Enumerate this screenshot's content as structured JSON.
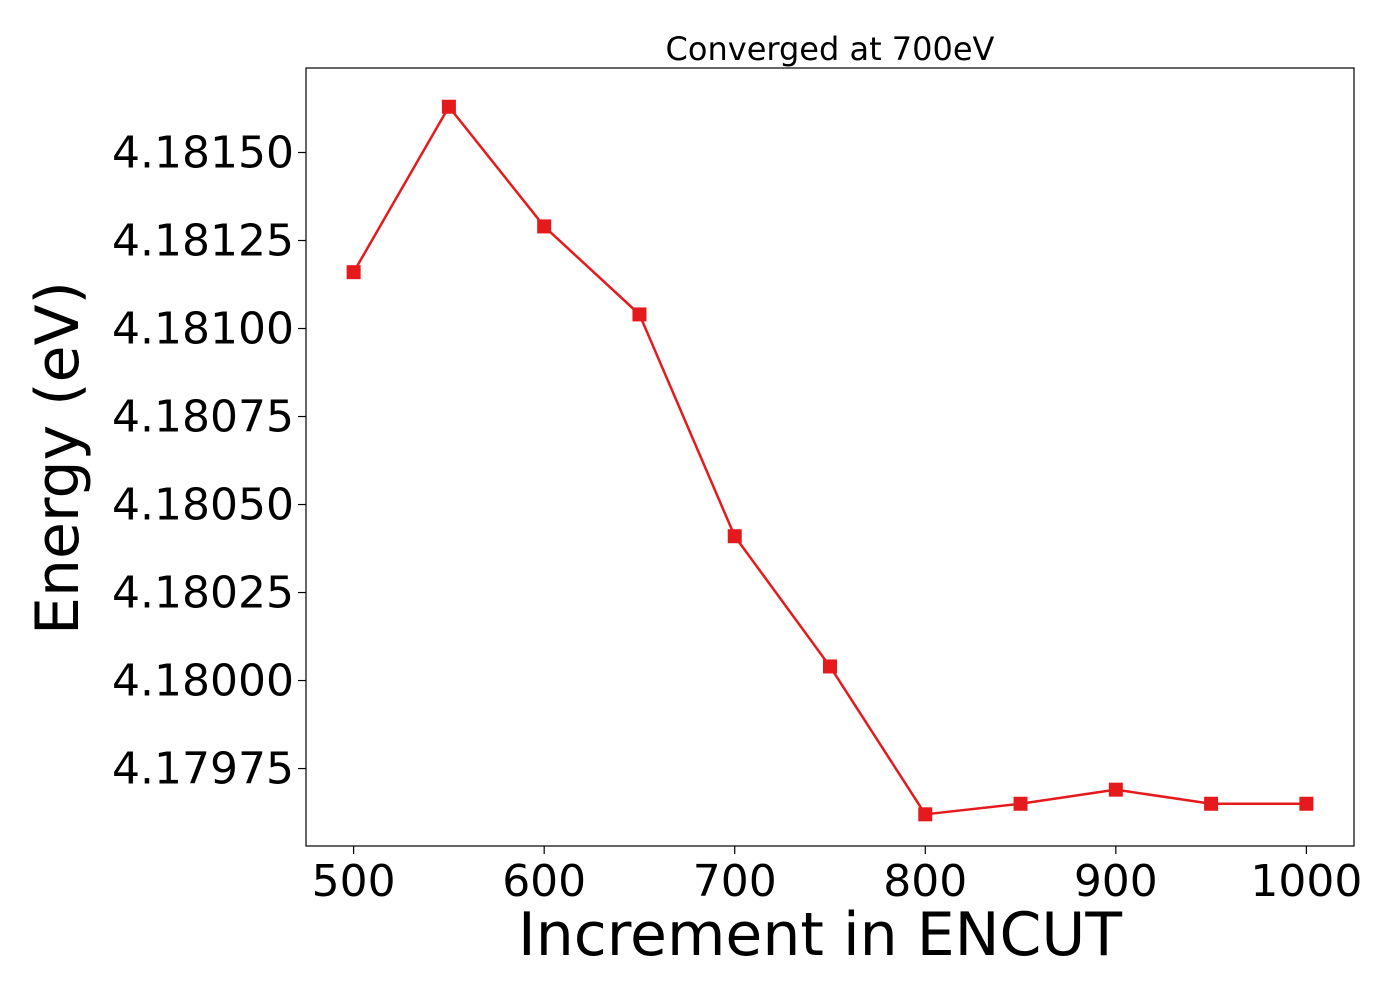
{
  "chart_data": {
    "type": "line",
    "title": "Converged at 700eV",
    "xlabel": "Increment in ENCUT",
    "ylabel": "Energy (eV)",
    "xlim": [
      475,
      1025
    ],
    "ylim": [
      4.17953,
      4.18174
    ],
    "x_ticks": [
      500,
      600,
      700,
      800,
      900,
      1000
    ],
    "x_tick_labels": [
      "500",
      "600",
      "700",
      "800",
      "900",
      "1000"
    ],
    "y_ticks": [
      4.17975,
      4.18,
      4.18025,
      4.1805,
      4.18075,
      4.181,
      4.18125,
      4.1815
    ],
    "y_tick_labels": [
      "4.17975",
      "4.18000",
      "4.18025",
      "4.18050",
      "4.18075",
      "4.18100",
      "4.18125",
      "4.18150"
    ],
    "grid": false,
    "series": [
      {
        "color": "#e41a1c",
        "marker": "square",
        "x": [
          500,
          550,
          600,
          650,
          700,
          750,
          800,
          850,
          900,
          950,
          1000
        ],
        "y": [
          4.18116,
          4.18163,
          4.18129,
          4.18104,
          4.18041,
          4.18004,
          4.17962,
          4.17965,
          4.17969,
          4.17965,
          4.17965
        ]
      }
    ]
  }
}
